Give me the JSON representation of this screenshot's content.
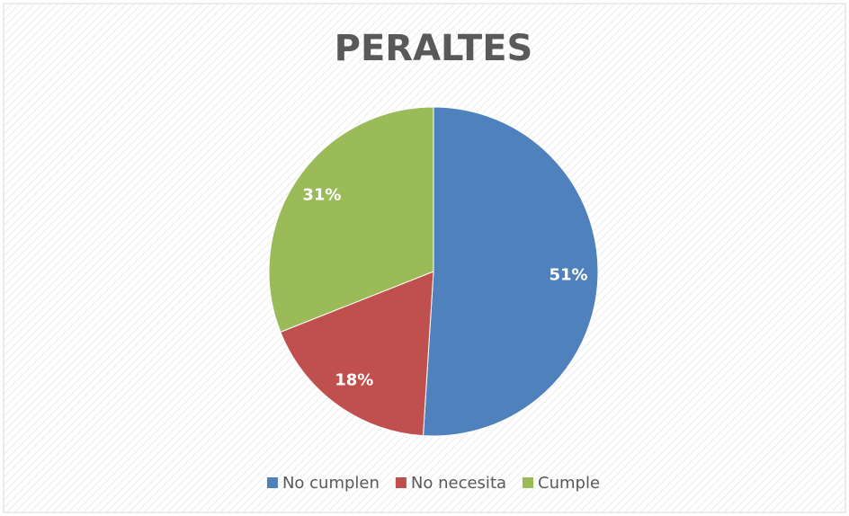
{
  "chart_data": {
    "type": "pie",
    "title": "PERALTES",
    "categories": [
      "No cumplen",
      "No necesita",
      "Cumple"
    ],
    "values": [
      51,
      18,
      31
    ],
    "value_labels": [
      "51%",
      "18%",
      "31%"
    ],
    "colors": [
      "#4f81bd",
      "#c0504d",
      "#9bbb59"
    ],
    "legend": "bottom"
  }
}
